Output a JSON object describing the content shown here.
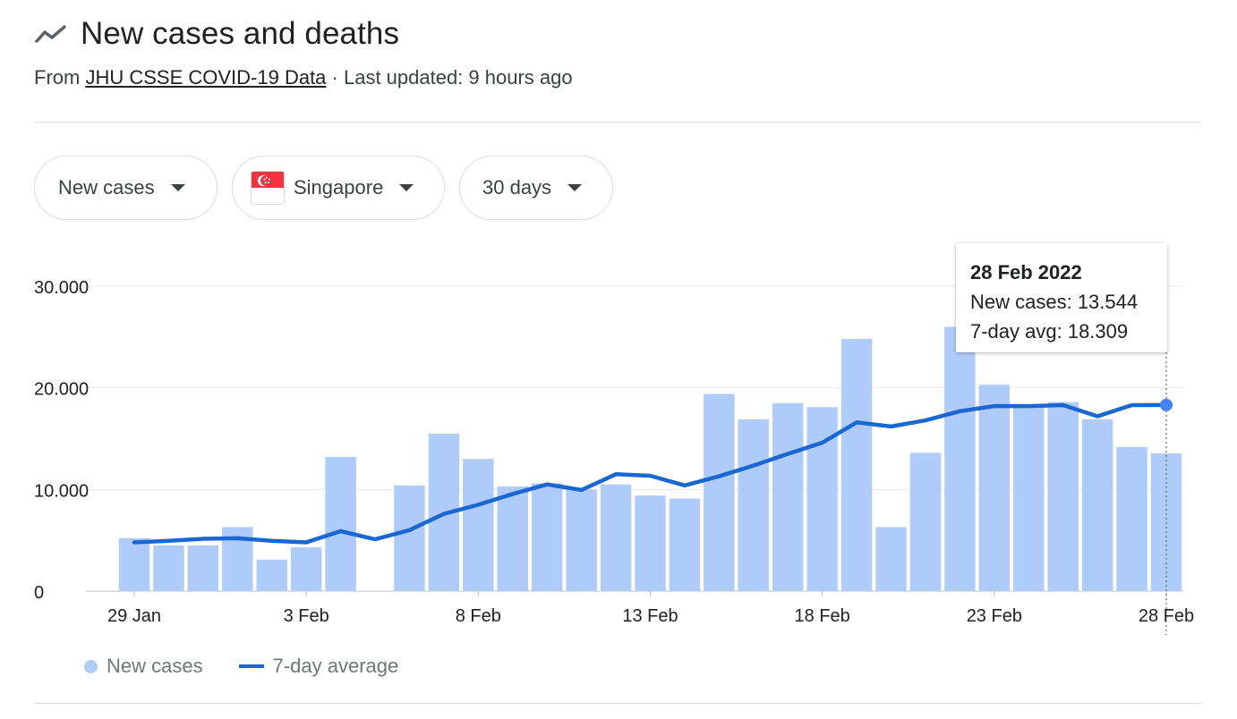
{
  "header": {
    "icon": "trend-line-icon",
    "title": "New cases and deaths",
    "source_prefix": "From ",
    "source_link": "JHU CSSE COVID-19 Data",
    "updated": " · Last updated: 9 hours ago"
  },
  "filters": {
    "metric": "New cases",
    "country": "Singapore",
    "range": "30 days"
  },
  "colors": {
    "bar": "#aecbfa",
    "line": "#1967d2",
    "point": "#4285f4",
    "grid": "#e8eaed"
  },
  "tooltip": {
    "title": "28 Feb 2022",
    "line1": "New cases: 13.544",
    "line2": "7-day avg: 18.309"
  },
  "legend": {
    "bars": "New cases",
    "line": "7-day average"
  },
  "chart_data": {
    "type": "bar",
    "title": "",
    "xlabel": "",
    "ylabel": "",
    "ylim": [
      0,
      30000
    ],
    "yticks": [
      0,
      10000,
      20000,
      30000
    ],
    "ytick_labels": [
      "0",
      "10.000",
      "20.000",
      "30.000"
    ],
    "x_tick_labels": [
      "29 Jan",
      "3 Feb",
      "8 Feb",
      "13 Feb",
      "18 Feb",
      "23 Feb",
      "28 Feb"
    ],
    "x_tick_index": [
      0,
      5,
      10,
      15,
      20,
      25,
      30
    ],
    "grid": true,
    "legend_position": "bottom-left",
    "categories": [
      "29 Jan",
      "30 Jan",
      "31 Jan",
      "1 Feb",
      "2 Feb",
      "3 Feb",
      "4 Feb",
      "5 Feb",
      "6 Feb",
      "7 Feb",
      "8 Feb",
      "9 Feb",
      "10 Feb",
      "11 Feb",
      "12 Feb",
      "13 Feb",
      "14 Feb",
      "15 Feb",
      "16 Feb",
      "17 Feb",
      "18 Feb",
      "19 Feb",
      "20 Feb",
      "21 Feb",
      "22 Feb",
      "23 Feb",
      "24 Feb",
      "25 Feb",
      "26 Feb",
      "27 Feb",
      "28 Feb"
    ],
    "series": [
      {
        "name": "New cases",
        "type": "bar",
        "values": [
          5200,
          4500,
          4500,
          6300,
          3100,
          4300,
          13200,
          0,
          10400,
          15500,
          13000,
          10300,
          10600,
          10000,
          10500,
          9400,
          9100,
          19400,
          16900,
          18500,
          18100,
          24800,
          6300,
          13600,
          26000,
          20300,
          18400,
          18600,
          16900,
          14200,
          13544
        ]
      },
      {
        "name": "7-day average",
        "type": "line",
        "values": [
          4800,
          4950,
          5150,
          5200,
          4950,
          4800,
          5900,
          5100,
          6000,
          7600,
          8500,
          9550,
          10500,
          9950,
          11500,
          11350,
          10400,
          11300,
          12350,
          13500,
          14600,
          16600,
          16200,
          16800,
          17700,
          18200,
          18200,
          18300,
          17200,
          18300,
          18309
        ]
      }
    ]
  }
}
